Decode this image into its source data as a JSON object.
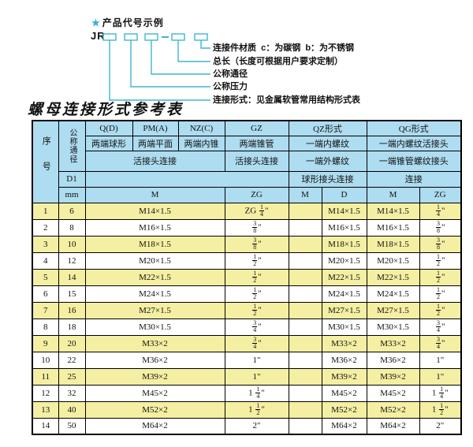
{
  "diagram": {
    "star_icon": "★",
    "title": "产品代号示例",
    "code_prefix": "JR",
    "line_color": "#3fb6d2",
    "labels": [
      "连接件材质  c：为碳钢  b：为不锈钢",
      "总长（长度可根据用户要求定制）",
      "公称通径",
      "公称压力",
      "连接形式：见金属软管常用结构形式表"
    ]
  },
  "table": {
    "title": "螺母连接形式参考表",
    "colors": {
      "header_bg": "#aedcf0",
      "row_alt_bg": "#f4efa2",
      "row_bg": "#ffffff"
    },
    "header": {
      "col_no": "序号",
      "col_dn": "公称通径",
      "d1": "D1",
      "mm": "mm",
      "q": "Q(D)",
      "q_sub": "两端球形",
      "pm": "PM(A)",
      "pm_sub": "两端平面",
      "nz": "NZ(C)",
      "nz_sub": "两端内锥",
      "union_conn": "活接头连接",
      "gz": "GZ",
      "gz_sub": "两端锥管",
      "gz_conn": "活接头连接",
      "gz_unit": "ZG",
      "qz": "QZ形式",
      "qz_sub1": "一端内螺纹",
      "qz_sub2": "一端外螺纹",
      "qz_conn": "球形接头连接",
      "qz_m": "M",
      "qz_d": "D",
      "qg": "QG形式",
      "qg_sub1": "一端内螺纹活接头",
      "qg_sub2": "一端锥管螺纹接头",
      "qg_conn": "连接",
      "qg_m": "M",
      "qg_zg": "ZG",
      "m_span": "M"
    },
    "rows": [
      [
        "1",
        "6",
        "M14×1.5",
        "ZG 1/4\"",
        "",
        "M14×1.5",
        "M14×1.5",
        "1/4\""
      ],
      [
        "2",
        "8",
        "M16×1.5",
        "3/8\"",
        "",
        "M16×1.5",
        "M16×1.5",
        "3/8\""
      ],
      [
        "3",
        "10",
        "M18×1.5",
        "3/8\"",
        "",
        "M18×1.5",
        "M18×1.5",
        "3/8\""
      ],
      [
        "4",
        "12",
        "M20×1.5",
        "1/2\"",
        "",
        "M20×1.5",
        "M20×1.5",
        "1/2\""
      ],
      [
        "5",
        "14",
        "M22×1.5",
        "1/2\"",
        "",
        "M22×1.5",
        "M22×1.5",
        "1/2\""
      ],
      [
        "6",
        "15",
        "M24×1.5",
        "1/2\"",
        "",
        "M24×1.5",
        "M24×1.5",
        "1/2\""
      ],
      [
        "7",
        "16",
        "M27×1.5",
        "1/2\"",
        "",
        "M27×1.5",
        "M27×1.5",
        "1/2\""
      ],
      [
        "8",
        "18",
        "M30×1.5",
        "3/4\"",
        "",
        "M30×1.5",
        "M30×1.5",
        "3/4\""
      ],
      [
        "9",
        "20",
        "M33×2",
        "3/4\"",
        "",
        "M33×2",
        "M33×2",
        "3/4\""
      ],
      [
        "10",
        "22",
        "M36×2",
        "1\"",
        "",
        "M36×2",
        "M36×2",
        "1\""
      ],
      [
        "11",
        "25",
        "M39×2",
        "1\"",
        "",
        "M39×2",
        "M39×2",
        "1\""
      ],
      [
        "12",
        "32",
        "M45×2",
        "1 1/4\"",
        "",
        "M45×2",
        "M45×2",
        "1 1/4\""
      ],
      [
        "13",
        "40",
        "M52×2",
        "1 1/2\"",
        "",
        "M52×2",
        "M52×2",
        "1 1/2\""
      ],
      [
        "14",
        "50",
        "M64×2",
        "2\"",
        "",
        "M64×2",
        "M64×2",
        "2\""
      ]
    ]
  }
}
